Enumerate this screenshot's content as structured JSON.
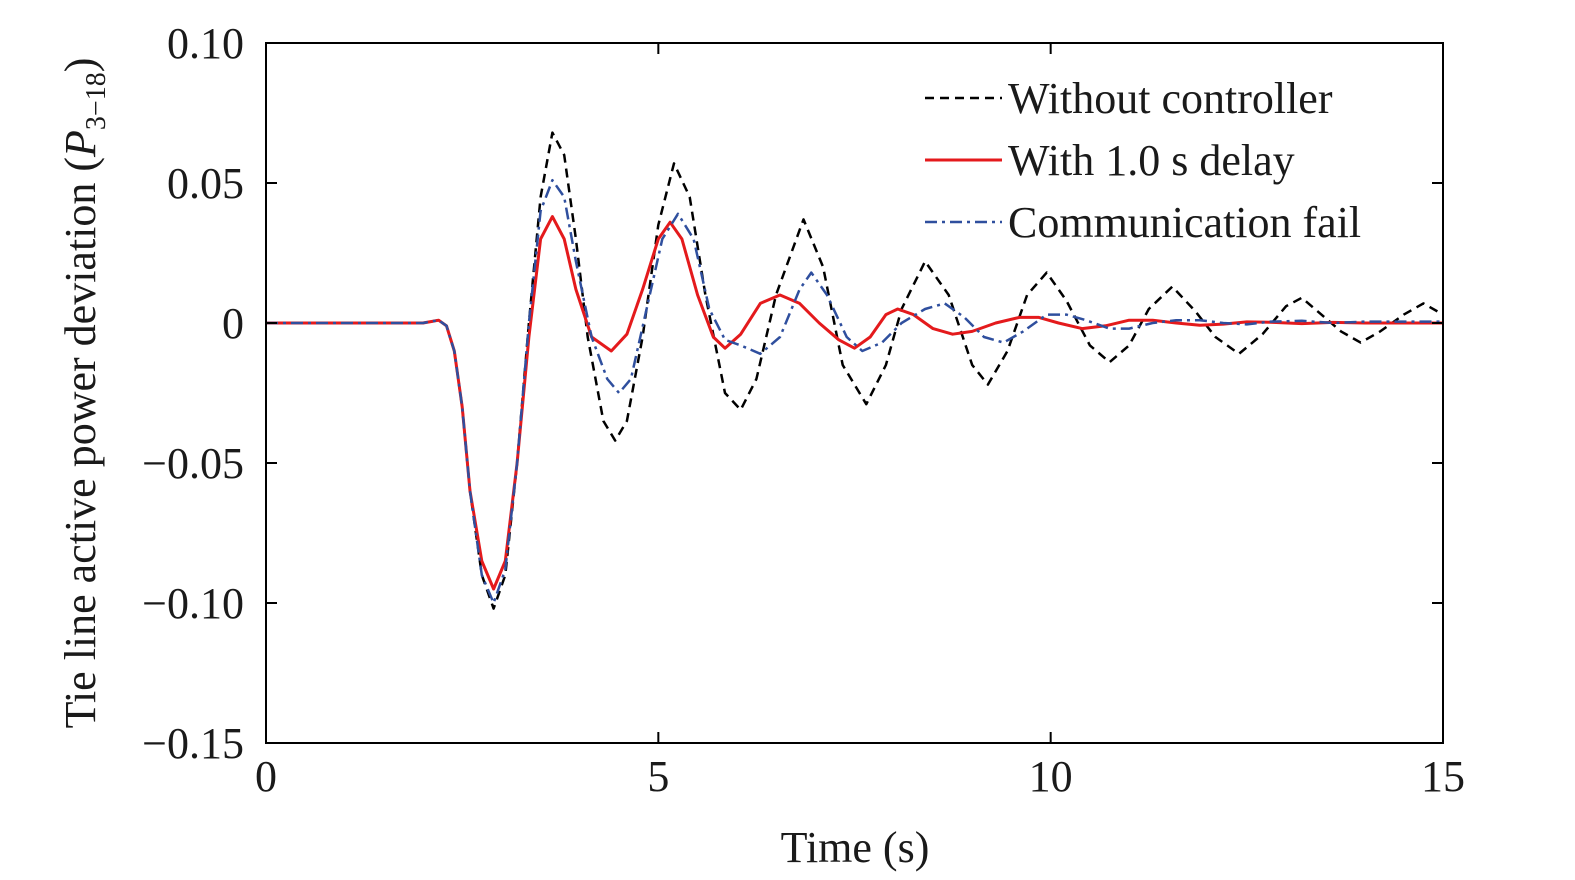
{
  "chart_data": {
    "type": "line",
    "xlabel": "Time (s)",
    "ylabel": {
      "prefix": "Tie line active power deviation (",
      "symbol": "P",
      "subscript": "3−18",
      "suffix": ")"
    },
    "xlim": [
      0,
      15
    ],
    "ylim": [
      -0.15,
      0.1
    ],
    "xticks": [
      0,
      5,
      10,
      15
    ],
    "xtick_labels": [
      "0",
      "5",
      "10",
      "15"
    ],
    "yticks": [
      0.1,
      0.05,
      0,
      -0.05,
      -0.1,
      -0.15
    ],
    "ytick_labels": [
      "0.10",
      "0.05",
      "0",
      "−0.05",
      "−0.10",
      "−0.15"
    ],
    "grid": false,
    "legend_position": "top-right",
    "series": [
      {
        "name": "Without controller",
        "color": "#000000",
        "style": "dashed",
        "points": [
          [
            0,
            0
          ],
          [
            2.0,
            0
          ],
          [
            2.1,
            0.0005
          ],
          [
            2.2,
            0.001
          ],
          [
            2.3,
            -0.001
          ],
          [
            2.4,
            -0.01
          ],
          [
            2.5,
            -0.03
          ],
          [
            2.6,
            -0.06
          ],
          [
            2.75,
            -0.09
          ],
          [
            2.9,
            -0.102
          ],
          [
            3.05,
            -0.09
          ],
          [
            3.2,
            -0.05
          ],
          [
            3.35,
            0.0
          ],
          [
            3.5,
            0.045
          ],
          [
            3.65,
            0.068
          ],
          [
            3.8,
            0.06
          ],
          [
            3.95,
            0.03
          ],
          [
            4.1,
            -0.005
          ],
          [
            4.3,
            -0.035
          ],
          [
            4.45,
            -0.042
          ],
          [
            4.6,
            -0.035
          ],
          [
            4.8,
            -0.005
          ],
          [
            5.0,
            0.035
          ],
          [
            5.2,
            0.057
          ],
          [
            5.4,
            0.045
          ],
          [
            5.6,
            0.01
          ],
          [
            5.85,
            -0.025
          ],
          [
            6.05,
            -0.031
          ],
          [
            6.25,
            -0.02
          ],
          [
            6.5,
            0.01
          ],
          [
            6.85,
            0.037
          ],
          [
            7.1,
            0.02
          ],
          [
            7.35,
            -0.015
          ],
          [
            7.65,
            -0.029
          ],
          [
            7.9,
            -0.015
          ],
          [
            8.1,
            0.005
          ],
          [
            8.4,
            0.022
          ],
          [
            8.7,
            0.01
          ],
          [
            9.0,
            -0.015
          ],
          [
            9.2,
            -0.022
          ],
          [
            9.45,
            -0.01
          ],
          [
            9.7,
            0.01
          ],
          [
            9.95,
            0.018
          ],
          [
            10.2,
            0.008
          ],
          [
            10.5,
            -0.008
          ],
          [
            10.75,
            -0.014
          ],
          [
            11.0,
            -0.008
          ],
          [
            11.25,
            0.005
          ],
          [
            11.55,
            0.013
          ],
          [
            11.85,
            0.004
          ],
          [
            12.1,
            -0.005
          ],
          [
            12.4,
            -0.011
          ],
          [
            12.7,
            -0.004
          ],
          [
            13.0,
            0.006
          ],
          [
            13.2,
            0.009
          ],
          [
            13.45,
            0.003
          ],
          [
            13.7,
            -0.003
          ],
          [
            13.95,
            -0.007
          ],
          [
            14.2,
            -0.003
          ],
          [
            14.5,
            0.003
          ],
          [
            14.75,
            0.007
          ],
          [
            15.0,
            0.003
          ]
        ]
      },
      {
        "name": "With 1.0 s delay",
        "color": "#e41a1c",
        "style": "solid",
        "points": [
          [
            0,
            0
          ],
          [
            2.0,
            0
          ],
          [
            2.1,
            0.0005
          ],
          [
            2.2,
            0.001
          ],
          [
            2.3,
            -0.001
          ],
          [
            2.4,
            -0.01
          ],
          [
            2.5,
            -0.03
          ],
          [
            2.6,
            -0.06
          ],
          [
            2.75,
            -0.085
          ],
          [
            2.9,
            -0.095
          ],
          [
            3.05,
            -0.085
          ],
          [
            3.2,
            -0.05
          ],
          [
            3.35,
            -0.005
          ],
          [
            3.5,
            0.03
          ],
          [
            3.65,
            0.038
          ],
          [
            3.8,
            0.03
          ],
          [
            3.95,
            0.012
          ],
          [
            4.15,
            -0.005
          ],
          [
            4.4,
            -0.01
          ],
          [
            4.6,
            -0.004
          ],
          [
            4.8,
            0.012
          ],
          [
            5.0,
            0.03
          ],
          [
            5.15,
            0.036
          ],
          [
            5.3,
            0.03
          ],
          [
            5.5,
            0.01
          ],
          [
            5.7,
            -0.005
          ],
          [
            5.85,
            -0.009
          ],
          [
            6.05,
            -0.004
          ],
          [
            6.3,
            0.007
          ],
          [
            6.55,
            0.01
          ],
          [
            6.8,
            0.007
          ],
          [
            7.05,
            0.0
          ],
          [
            7.3,
            -0.006
          ],
          [
            7.5,
            -0.009
          ],
          [
            7.7,
            -0.005
          ],
          [
            7.9,
            0.003
          ],
          [
            8.05,
            0.005
          ],
          [
            8.25,
            0.003
          ],
          [
            8.5,
            -0.002
          ],
          [
            8.75,
            -0.004
          ],
          [
            9.0,
            -0.003
          ],
          [
            9.3,
            0.0
          ],
          [
            9.6,
            0.002
          ],
          [
            9.85,
            0.002
          ],
          [
            10.1,
            0.0
          ],
          [
            10.4,
            -0.002
          ],
          [
            10.7,
            -0.001
          ],
          [
            11.0,
            0.001
          ],
          [
            11.3,
            0.001
          ],
          [
            11.6,
            0.0
          ],
          [
            11.9,
            -0.0008
          ],
          [
            12.2,
            -0.0004
          ],
          [
            12.5,
            0.0004
          ],
          [
            12.8,
            0.0003
          ],
          [
            13.2,
            -0.0002
          ],
          [
            13.6,
            0.0002
          ],
          [
            14.0,
            0
          ],
          [
            14.5,
            0
          ],
          [
            15.0,
            0
          ]
        ]
      },
      {
        "name": "Communication fail",
        "color": "#2f4f9e",
        "style": "dashdot",
        "points": [
          [
            0,
            0
          ],
          [
            2.0,
            0
          ],
          [
            2.1,
            0.0005
          ],
          [
            2.2,
            0.001
          ],
          [
            2.3,
            -0.001
          ],
          [
            2.4,
            -0.01
          ],
          [
            2.5,
            -0.03
          ],
          [
            2.6,
            -0.06
          ],
          [
            2.75,
            -0.09
          ],
          [
            2.9,
            -0.1
          ],
          [
            3.05,
            -0.088
          ],
          [
            3.2,
            -0.05
          ],
          [
            3.35,
            0.0
          ],
          [
            3.5,
            0.04
          ],
          [
            3.65,
            0.051
          ],
          [
            3.8,
            0.045
          ],
          [
            3.95,
            0.022
          ],
          [
            4.15,
            -0.005
          ],
          [
            4.35,
            -0.02
          ],
          [
            4.5,
            -0.025
          ],
          [
            4.65,
            -0.02
          ],
          [
            4.85,
            0.005
          ],
          [
            5.05,
            0.03
          ],
          [
            5.25,
            0.039
          ],
          [
            5.45,
            0.03
          ],
          [
            5.65,
            0.005
          ],
          [
            5.85,
            -0.006
          ],
          [
            6.05,
            -0.008
          ],
          [
            6.3,
            -0.011
          ],
          [
            6.55,
            -0.005
          ],
          [
            6.8,
            0.012
          ],
          [
            6.95,
            0.018
          ],
          [
            7.15,
            0.01
          ],
          [
            7.4,
            -0.005
          ],
          [
            7.6,
            -0.01
          ],
          [
            7.85,
            -0.007
          ],
          [
            8.1,
            0.0
          ],
          [
            8.4,
            0.005
          ],
          [
            8.65,
            0.007
          ],
          [
            8.9,
            0.002
          ],
          [
            9.15,
            -0.005
          ],
          [
            9.4,
            -0.007
          ],
          [
            9.65,
            -0.003
          ],
          [
            9.95,
            0.003
          ],
          [
            10.2,
            0.003
          ],
          [
            10.45,
            0.001
          ],
          [
            10.75,
            -0.002
          ],
          [
            11.0,
            -0.002
          ],
          [
            11.3,
            0.0
          ],
          [
            11.6,
            0.001
          ],
          [
            11.9,
            0.001
          ],
          [
            12.2,
            0.0
          ],
          [
            12.5,
            -0.0005
          ],
          [
            12.8,
            0.0005
          ],
          [
            13.2,
            0.0008
          ],
          [
            13.6,
            0.0
          ],
          [
            14.0,
            0.0005
          ],
          [
            14.5,
            0.0005
          ],
          [
            15.0,
            0.0005
          ]
        ]
      }
    ]
  }
}
